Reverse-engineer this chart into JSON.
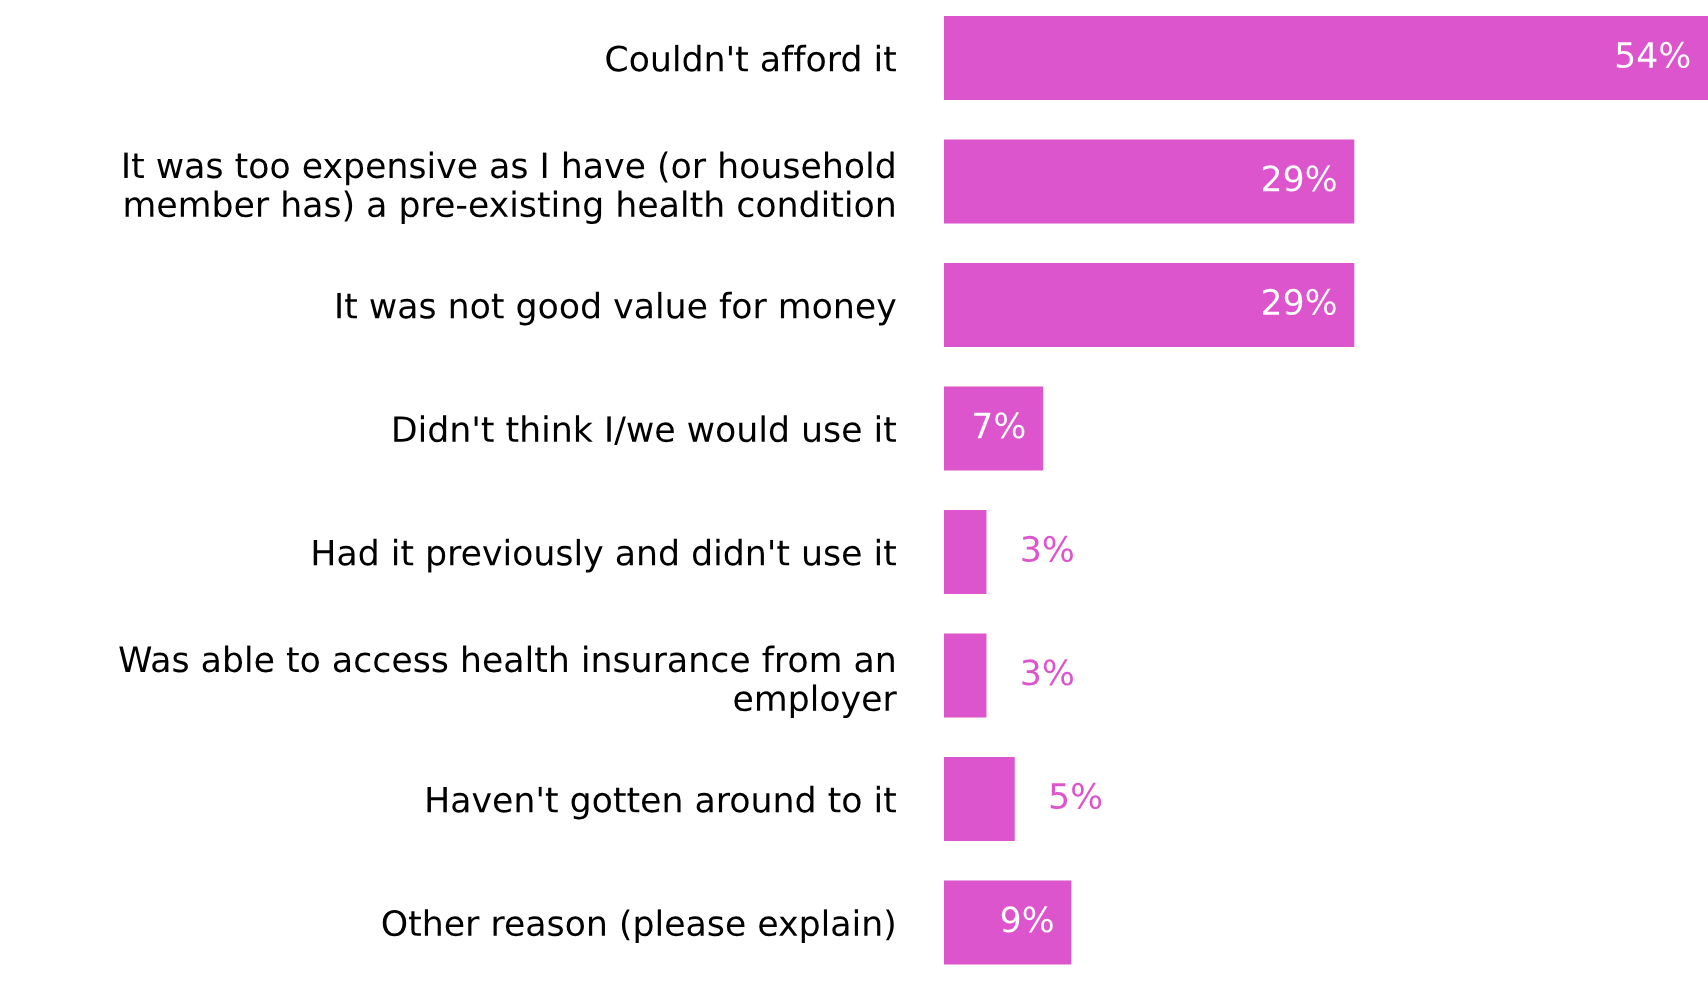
{
  "chart_data": {
    "type": "bar",
    "orientation": "horizontal",
    "data_labels": true,
    "categories": [
      "Couldn't afford it",
      "It was too expensive as I have (or household\nmember has) a pre-existing health condition",
      "It was not good value for money",
      "Didn't think I/we would use it",
      "Had it previously and didn't use it",
      "Was able to access health insurance from an\nemployer",
      "Haven't gotten around to it",
      "Other reason (please explain)"
    ],
    "values": [
      54,
      29,
      29,
      7,
      3,
      3,
      5,
      9
    ],
    "value_labels": [
      "54%",
      "29%",
      "29%",
      "7%",
      "3%",
      "3%",
      "5%",
      "9%"
    ],
    "color": "#dd55cc",
    "grid": false,
    "legend": false
  }
}
